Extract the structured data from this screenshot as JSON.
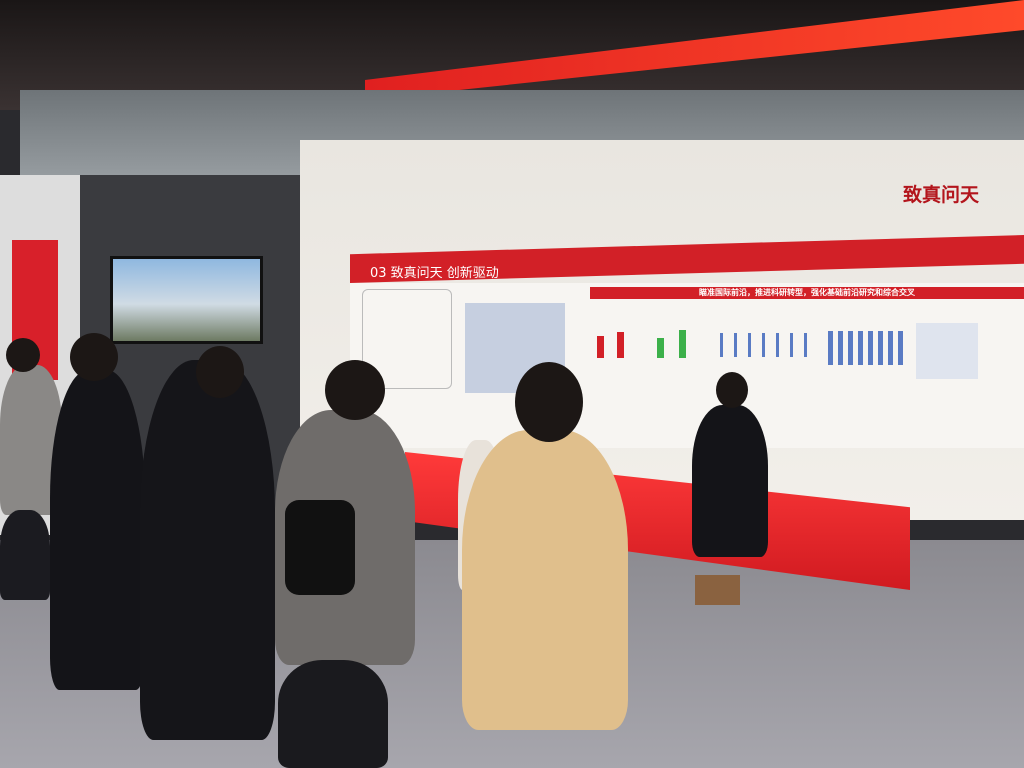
{
  "scene": {
    "wall_title": "致真问天",
    "band_title": "03 致真问天  创新驱动",
    "subheader": "瞄准国际前沿，推进科研转型，强化基础前沿研究和综合交叉",
    "colors": {
      "brand_red": "#d22027",
      "wall": "#eeebe6"
    }
  }
}
